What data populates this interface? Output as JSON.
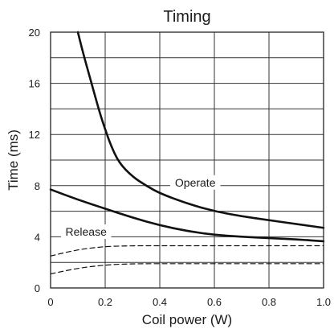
{
  "chart_data": {
    "type": "line",
    "title": "Timing",
    "xlabel": "Coil power (W)",
    "ylabel": "Time (ms)",
    "xlim": [
      0,
      1.0
    ],
    "ylim": [
      0,
      20
    ],
    "x_ticks": [
      "0",
      "0.2",
      "0.4",
      "0.6",
      "0.8",
      "1.0"
    ],
    "y_ticks": [
      "0",
      "4",
      "8",
      "12",
      "16",
      "20"
    ],
    "grid": true,
    "series": [
      {
        "name": "Operate",
        "style": "solid",
        "x": [
          0.1,
          0.12,
          0.15,
          0.18,
          0.2,
          0.22,
          0.25,
          0.3,
          0.35,
          0.4,
          0.5,
          0.6,
          0.7,
          0.8,
          0.9,
          1.0
        ],
        "y": [
          20,
          18.3,
          16.0,
          13.7,
          12.4,
          11.2,
          9.8,
          8.7,
          8.0,
          7.4,
          6.6,
          6.0,
          5.6,
          5.3,
          5.0,
          4.7
        ]
      },
      {
        "name": "Release",
        "style": "solid",
        "x": [
          0,
          0.1,
          0.2,
          0.3,
          0.4,
          0.5,
          0.6,
          0.7,
          0.8,
          0.9,
          1.0
        ],
        "y": [
          7.7,
          6.9,
          6.2,
          5.5,
          4.9,
          4.45,
          4.15,
          4.0,
          3.9,
          3.8,
          3.65
        ]
      },
      {
        "style": "dashed",
        "x": [
          0,
          0.1,
          0.2,
          0.3,
          0.4,
          0.6,
          0.8,
          1.0
        ],
        "y": [
          2.5,
          3.0,
          3.25,
          3.3,
          3.3,
          3.3,
          3.3,
          3.3
        ]
      },
      {
        "style": "dashed",
        "x": [
          0,
          0.1,
          0.2,
          0.3,
          0.5,
          0.7,
          1.0
        ],
        "y": [
          1.1,
          1.55,
          1.8,
          1.9,
          1.9,
          1.9,
          1.9
        ]
      }
    ],
    "annotations": [
      {
        "text": "Operate",
        "x": 0.53,
        "y": 8.0
      },
      {
        "text": "Release",
        "x": 0.13,
        "y": 4.15
      }
    ]
  }
}
